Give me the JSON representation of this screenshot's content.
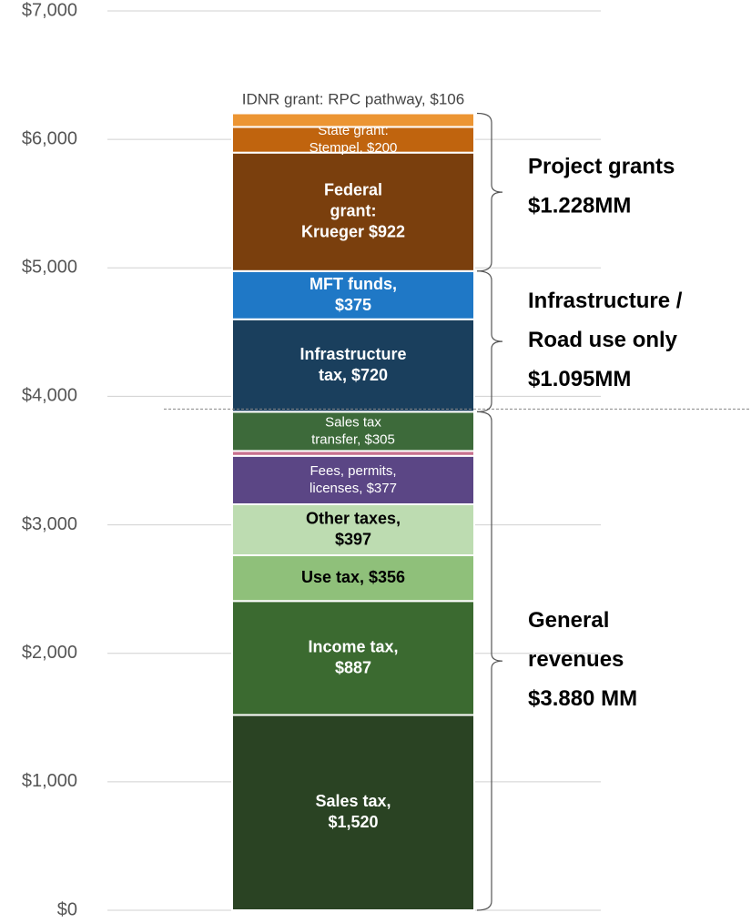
{
  "chart_data": {
    "type": "stacked_bar",
    "ylim": [
      0,
      7000
    ],
    "yticks": [
      {
        "value": 0,
        "label": "$0"
      },
      {
        "value": 1000,
        "label": "$1,000"
      },
      {
        "value": 2000,
        "label": "$2,000"
      },
      {
        "value": 3000,
        "label": "$3,000"
      },
      {
        "value": 4000,
        "label": "$4,000"
      },
      {
        "value": 5000,
        "label": "$5,000"
      },
      {
        "value": 6000,
        "label": "$6,000"
      },
      {
        "value": 7000,
        "label": "$7,000"
      }
    ],
    "grid": true,
    "series": [
      {
        "name": "Sales tax,\n$1,520",
        "color": "#2a4323",
        "label_color": "#ffffff",
        "values": [
          1520
        ]
      },
      {
        "name": "Income tax,\n$887",
        "color": "#3b6a30",
        "label_color": "#ffffff",
        "values": [
          887
        ]
      },
      {
        "name": "Use tax, $356",
        "color": "#8fc07a",
        "label_color": "#000000",
        "values": [
          356
        ]
      },
      {
        "name": "Other taxes,\n$397",
        "color": "#bddcb1",
        "label_color": "#000000",
        "values": [
          397
        ]
      },
      {
        "name": "Fees, permits,\nlicenses, $377",
        "color": "#5b4685",
        "label_color": "#ffffff",
        "bold": false,
        "values": [
          377
        ]
      },
      {
        "name": null,
        "color": "#c8708e",
        "values": [
          38
        ]
      },
      {
        "name": "Sales tax\ntransfer, $305",
        "color": "#3d6a3a",
        "label_color": "#ffffff",
        "bold": false,
        "values": [
          305
        ]
      },
      {
        "name": "Infrastructure\ntax, $720",
        "color": "#1a3f5d",
        "label_color": "#ffffff",
        "values": [
          720
        ]
      },
      {
        "name": "MFT funds,\n$375",
        "color": "#1f78c6",
        "label_color": "#ffffff",
        "values": [
          375
        ]
      },
      {
        "name": "Federal\ngrant:\nKrueger $922",
        "color": "#7a3f0d",
        "label_color": "#ffffff",
        "values": [
          922
        ]
      },
      {
        "name": "State grant:\nStempel, $200",
        "color": "#c0640e",
        "label_color": "#ffffff",
        "bold": false,
        "values": [
          200
        ]
      },
      {
        "name": "IDNR grant: RPC pathway, $106",
        "color": "#ec9533",
        "label_color": "#444444",
        "bold": false,
        "label_above": true,
        "values": [
          106
        ]
      }
    ],
    "annotations": [
      "Project grants\n$1.228MM",
      "Infrastructure /\nRoad use only\n$1.095MM",
      "General\nrevenues\n$3.880 MM"
    ]
  }
}
